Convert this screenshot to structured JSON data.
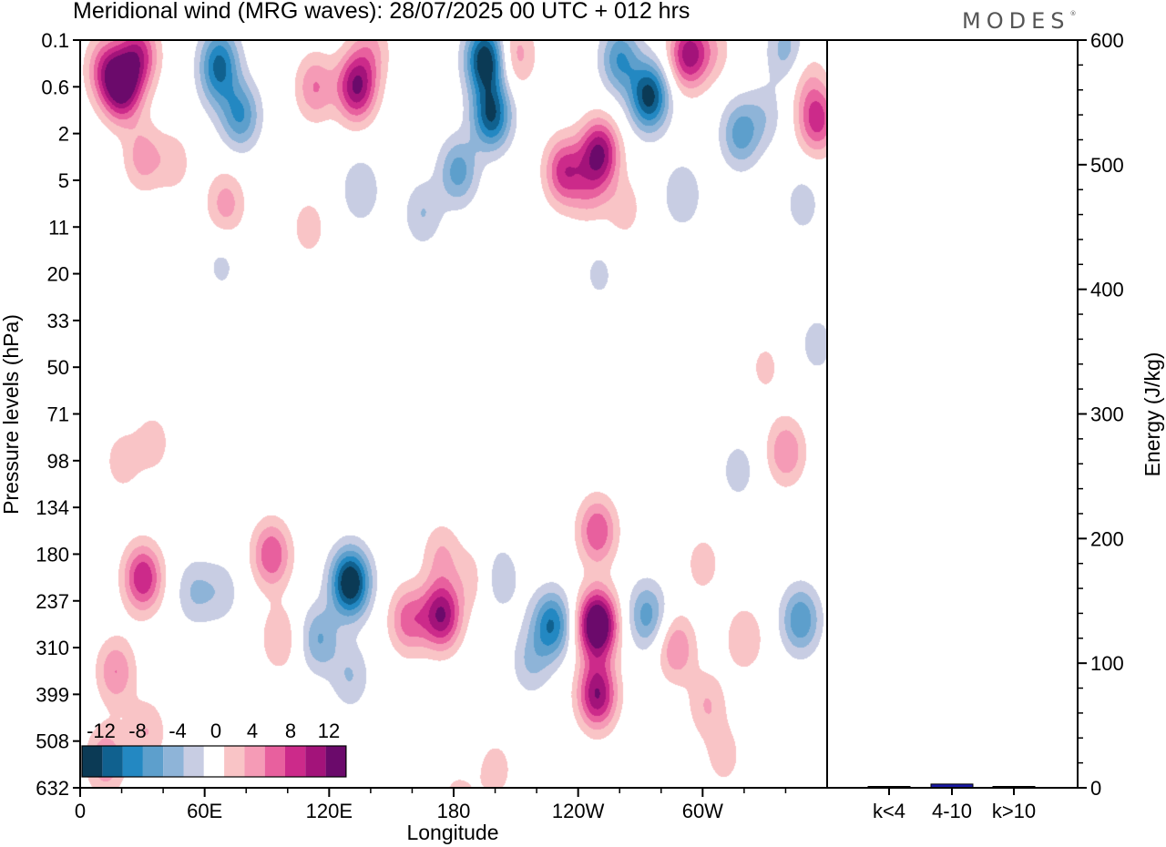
{
  "header": {
    "title": "Meridional wind (MRG waves):  28/07/2025  00 UTC  + 012 hrs",
    "logo": "MODES",
    "logo_mark": "®"
  },
  "chart_data": [
    {
      "type": "heatmap",
      "title": "Meridional wind (MRG waves)",
      "xlabel": "Longitude",
      "ylabel": "Pressure levels (hPa)",
      "x_ticks": [
        "0",
        "60E",
        "120E",
        "180",
        "120W",
        "60W"
      ],
      "x_tick_values": [
        0,
        60,
        120,
        180,
        240,
        300
      ],
      "xlim": [
        0,
        360
      ],
      "y_ticks": [
        "0.1",
        "0.6",
        "2",
        "5",
        "11",
        "20",
        "33",
        "50",
        "71",
        "98",
        "134",
        "180",
        "237",
        "310",
        "399",
        "508",
        "632"
      ],
      "colorbar": {
        "labels": [
          "-12",
          "-8",
          "-4",
          "0",
          "4",
          "8",
          "12"
        ],
        "levels": [
          -14,
          -12,
          -10,
          -8,
          -6,
          -4,
          -2,
          2,
          4,
          6,
          8,
          10,
          12,
          14
        ],
        "colors": [
          "#0b3a55",
          "#10618f",
          "#2388c2",
          "#5d9fcc",
          "#8eb4d8",
          "#c8cde3",
          "#ffffff",
          "#f9c4c6",
          "#f59bb6",
          "#e8609e",
          "#cc2a8a",
          "#a3137a",
          "#6b0a6b"
        ]
      },
      "blobs": [
        {
          "lon": 20,
          "level": 1.0,
          "value": 13
        },
        {
          "lon": 28,
          "level": 0.3,
          "value": 9
        },
        {
          "lon": 12,
          "level": 0.6,
          "value": 7
        },
        {
          "lon": 30,
          "level": 2.5,
          "value": 5
        },
        {
          "lon": 45,
          "level": 2.6,
          "value": 3
        },
        {
          "lon": 67,
          "level": 0.4,
          "value": -8
        },
        {
          "lon": 77,
          "level": 1.6,
          "value": -8
        },
        {
          "lon": 66,
          "level": 0.9,
          "value": -4
        },
        {
          "lon": 70,
          "level": 3.5,
          "value": 5
        },
        {
          "lon": 113,
          "level": 1.0,
          "value": 6
        },
        {
          "lon": 133,
          "level": 1.0,
          "value": 12
        },
        {
          "lon": 140,
          "level": 0.2,
          "value": 4
        },
        {
          "lon": 135,
          "level": 3.2,
          "value": -4
        },
        {
          "lon": 195,
          "level": 0.4,
          "value": -14
        },
        {
          "lon": 198,
          "level": 1.6,
          "value": -12
        },
        {
          "lon": 182,
          "level": 2.8,
          "value": -7
        },
        {
          "lon": 165,
          "level": 3.7,
          "value": -4
        },
        {
          "lon": 210,
          "level": 0.3,
          "value": 5
        },
        {
          "lon": 233,
          "level": 2.8,
          "value": 9
        },
        {
          "lon": 250,
          "level": 2.4,
          "value": 12
        },
        {
          "lon": 245,
          "level": 3.2,
          "value": 4
        },
        {
          "lon": 262,
          "level": 3.6,
          "value": 3
        },
        {
          "lon": 260,
          "level": 0.4,
          "value": -8
        },
        {
          "lon": 274,
          "level": 1.2,
          "value": -13
        },
        {
          "lon": 293,
          "level": 0.3,
          "value": 11
        },
        {
          "lon": 305,
          "level": 0.2,
          "value": 3
        },
        {
          "lon": 318,
          "level": 2.0,
          "value": -7
        },
        {
          "lon": 330,
          "level": 1.6,
          "value": -3
        },
        {
          "lon": 340,
          "level": 0.2,
          "value": -5
        },
        {
          "lon": 355,
          "level": 1.7,
          "value": 9
        },
        {
          "lon": 350,
          "level": 0.8,
          "value": 3
        },
        {
          "lon": 290,
          "level": 3.3,
          "value": -4
        },
        {
          "lon": 348,
          "level": 3.5,
          "value": -3
        },
        {
          "lon": 68,
          "level": 4.8,
          "value": -2.5
        },
        {
          "lon": 110,
          "level": 4.0,
          "value": 3
        },
        {
          "lon": 250,
          "level": 5.0,
          "value": -2.5
        },
        {
          "lon": 20,
          "level": 9.0,
          "value": 3
        },
        {
          "lon": 30,
          "level": 11.5,
          "value": 10
        },
        {
          "lon": 17,
          "level": 13.5,
          "value": 6
        },
        {
          "lon": 32,
          "level": 14.8,
          "value": 4
        },
        {
          "lon": 55,
          "level": 11.8,
          "value": -4
        },
        {
          "lon": 68,
          "level": 11.8,
          "value": -3
        },
        {
          "lon": 92,
          "level": 11.0,
          "value": 8
        },
        {
          "lon": 96,
          "level": 12.8,
          "value": 4
        },
        {
          "lon": 130,
          "level": 11.6,
          "value": -15
        },
        {
          "lon": 115,
          "level": 12.8,
          "value": -6
        },
        {
          "lon": 130,
          "level": 13.6,
          "value": -4
        },
        {
          "lon": 158,
          "level": 12.4,
          "value": 7
        },
        {
          "lon": 174,
          "level": 12.3,
          "value": 12
        },
        {
          "lon": 174,
          "level": 11.0,
          "value": 4
        },
        {
          "lon": 190,
          "level": 11.5,
          "value": 3
        },
        {
          "lon": 202,
          "level": 11.5,
          "value": -4
        },
        {
          "lon": 227,
          "level": 12.5,
          "value": -10
        },
        {
          "lon": 217,
          "level": 13.3,
          "value": -4
        },
        {
          "lon": 249,
          "level": 12.5,
          "value": 17
        },
        {
          "lon": 249,
          "level": 14.0,
          "value": 12
        },
        {
          "lon": 249,
          "level": 10.5,
          "value": 8
        },
        {
          "lon": 273,
          "level": 12.3,
          "value": -7
        },
        {
          "lon": 287,
          "level": 13.0,
          "value": 6
        },
        {
          "lon": 300,
          "level": 11.2,
          "value": 3
        },
        {
          "lon": 302,
          "level": 14.2,
          "value": 4
        },
        {
          "lon": 320,
          "level": 12.8,
          "value": 4
        },
        {
          "lon": 340,
          "level": 8.8,
          "value": 6
        },
        {
          "lon": 317,
          "level": 9.2,
          "value": -3
        },
        {
          "lon": 310,
          "level": 15.3,
          "value": 3
        },
        {
          "lon": 347,
          "level": 12.4,
          "value": -8
        },
        {
          "lon": 12,
          "level": 15.4,
          "value": 6
        },
        {
          "lon": 200,
          "level": 15.6,
          "value": 3
        },
        {
          "lon": 182,
          "level": 16.3,
          "value": 3
        },
        {
          "lon": 35,
          "level": 8.6,
          "value": 3
        },
        {
          "lon": 330,
          "level": 7.0,
          "value": 2.5
        },
        {
          "lon": 355,
          "level": 6.5,
          "value": -3
        }
      ]
    },
    {
      "type": "bar",
      "ylabel": "Energy (J/kg)",
      "categories": [
        "k<4",
        "4-10",
        "k>10"
      ],
      "values": [
        0,
        3,
        0
      ],
      "ylim": [
        0,
        600
      ],
      "y_ticks": [
        "0",
        "100",
        "200",
        "300",
        "400",
        "500",
        "600"
      ],
      "y_tick_values": [
        0,
        100,
        200,
        300,
        400,
        500,
        600
      ],
      "bar_color": "#1a1aa6"
    }
  ]
}
